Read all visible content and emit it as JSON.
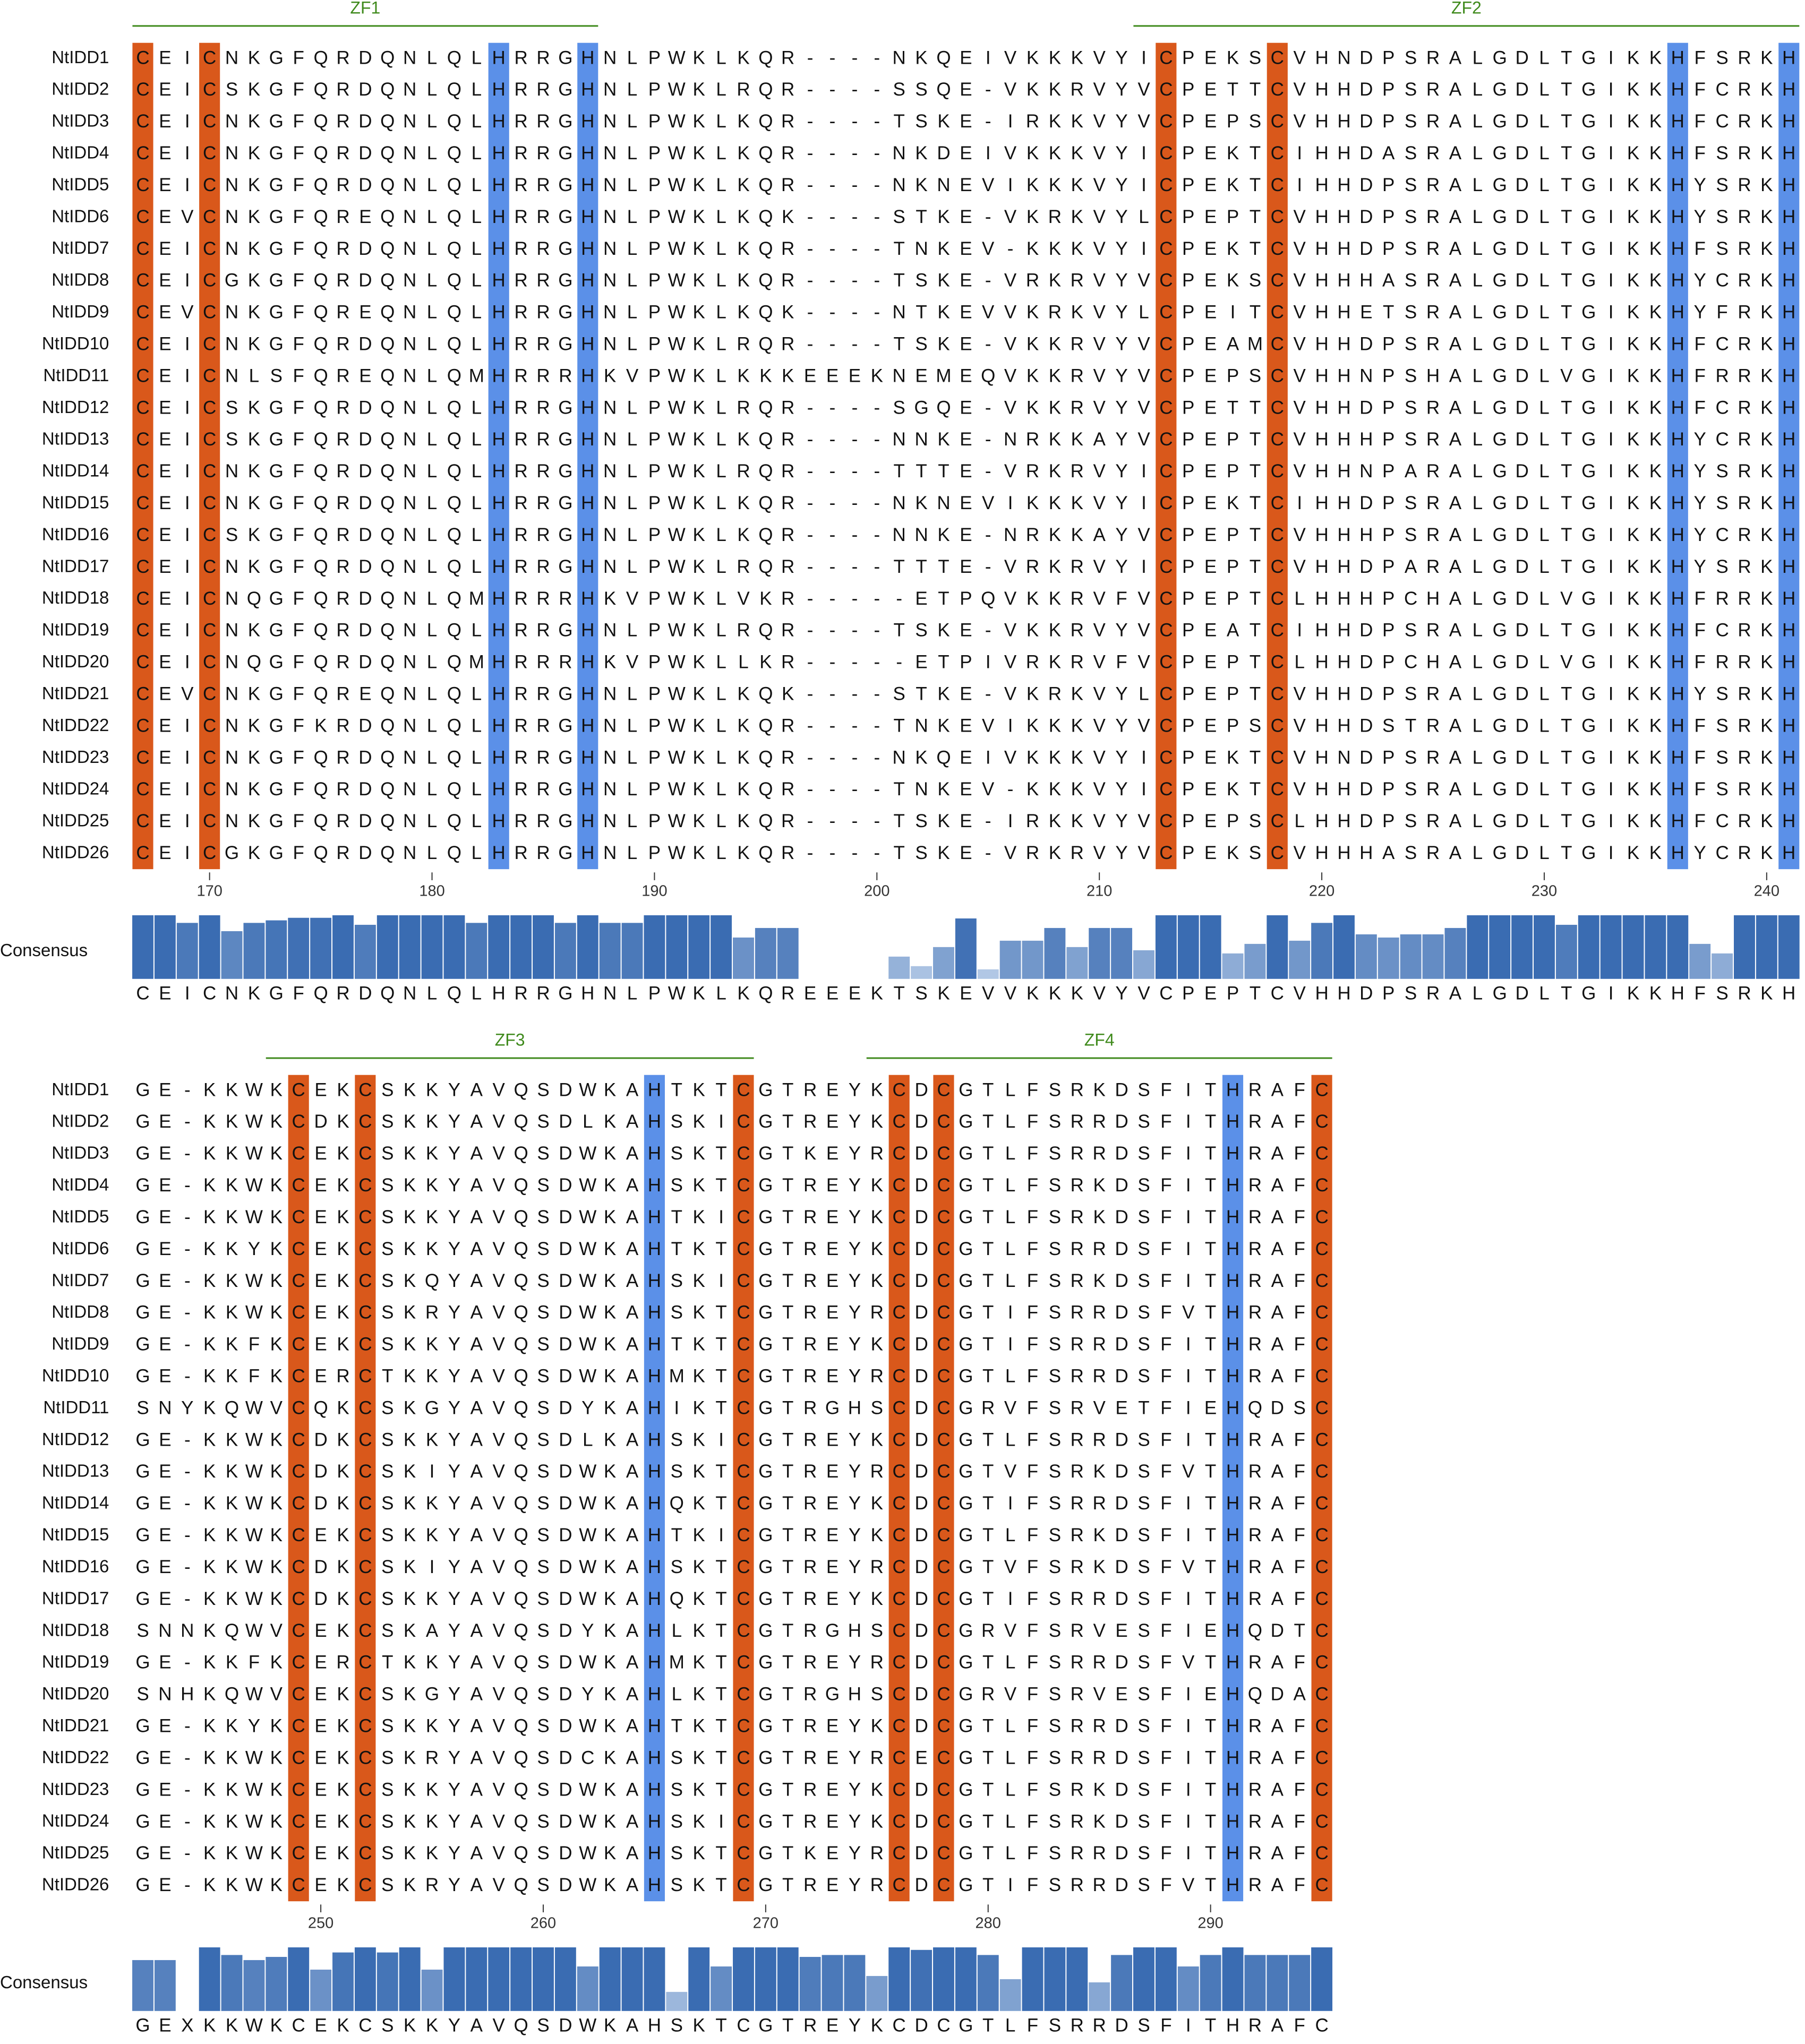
{
  "blocks": [
    {
      "start": 167,
      "zf": [
        {
          "label": "ZF1",
          "from": 167,
          "to": 187
        },
        {
          "label": "ZF2",
          "from": 212,
          "to": 241
        }
      ],
      "cys_positions": [
        167,
        170,
        213,
        218
      ],
      "his_positions": [
        183,
        187,
        236,
        241
      ],
      "names": [
        "NtIDD1",
        "NtIDD2",
        "NtIDD3",
        "NtIDD4",
        "NtIDD5",
        "NtIDD6",
        "NtIDD7",
        "NtIDD8",
        "NtIDD9",
        "NtIDD10",
        "NtIDD11",
        "NtIDD12",
        "NtIDD13",
        "NtIDD14",
        "NtIDD15",
        "NtIDD16",
        "NtIDD17",
        "NtIDD18",
        "NtIDD19",
        "NtIDD20",
        "NtIDD21",
        "NtIDD22",
        "NtIDD23",
        "NtIDD24",
        "NtIDD25",
        "NtIDD26"
      ],
      "sequences": [
        "CEICNKGFQRDQNLQLHRRGHNLPWKLKQR----NKQEIVKKKVYICPEKSCVHNDPSRALGDLTGIKKHFSRKH",
        "CEICSKGFQRDQNLQLHRRGHNLPWKLRQR----SSQE-VKKRVYVCPETTCVHHDPSRALGDLTGIKKHFCRKH",
        "CEICNKGFQRDQNLQLHRRGHNLPWKLKQR----TSKE-IRKKVYVCPEPSCVHHDPSRALGDLTGIKKHFCRKH",
        "CEICNKGFQRDQNLQLHRRGHNLPWKLKQR----NKDEIVKKKVYICPEKTCIHHDASRALGDLTGIKKHFSRKH",
        "CEICNKGFQRDQNLQLHRRGHNLPWKLKQR----NKNEVIKKKVYICPEKTCIHHDPSRALGDLTGIKKHYSRKH",
        "CEVCNKGFQREQNLQLHRRGHNLPWKLKQK----STKE-VKRKVYLCPEPTCVHHDPSRALGDLTGIKKHYSRKH",
        "CEICNKGFQRDQNLQLHRRGHNLPWKLKQR----TNKEV-KKKVYICPEKTCVHHDPSRALGDLTGIKKHFSRKH",
        "CEICGKGFQRDQNLQLHRRGHNLPWKLKQR----TSKE-VRKRVYVCPEKSCVHHHASRALGDLTGIKKHYCRKH",
        "CEVCNKGFQREQNLQLHRRGHNLPWKLKQK----NTKEVVKRKVYLCPEITCVHHETSRALGDLTGIKKHYFRKH",
        "CEICNKGFQRDQNLQLHRRGHNLPWKLRQR----TSKE-VKKRVYVCPEAMCVHHDPSRALGDLTGIKKHFCRKH",
        "CEICNLSFQREQNLQMHRRRHKVPWKLKKKEEEKNEMEQVKKRVYVCPEPSCVHHNPSHALGDLVGIKKHFRRKH",
        "CEICSKGFQRDQNLQLHRRGHNLPWKLRQR----SGQE-VKKRVYVCPETTCVHHDPSRALGDLTGIKKHFCRKH",
        "CEICSKGFQRDQNLQLHRRGHNLPWKLKQR----NNKE-NRKKAYVCPEPTCVHHHPSRALGDLTGIKKHYCRKH",
        "CEICNKGFQRDQNLQLHRRGHNLPWKLRQR----TTTE-VRKRVYICPEPTCVHHNPARALGDLTGIKKHYSRKH",
        "CEICNKGFQRDQNLQLHRRGHNLPWKLKQR----NKNEVIKKKVYICPEKTCIHHDPSRALGDLTGIKKHYSRKH",
        "CEICSKGFQRDQNLQLHRRGHNLPWKLKQR----NNKE-NRKKAYVCPEPTCVHHHPSRALGDLTGIKKHYCRKH",
        "CEICNKGFQRDQNLQLHRRGHNLPWKLRQR----TTTE-VRKRVYICPEPTCVHHDPARALGDLTGIKKHYSRKH",
        "CEICNQGFQRDQNLQMHRRRHKVPWKLVKR-----ETPQVKKRVFVCPEPTCLHHHPCHALGDLVGIKKHFRRKH",
        "CEICNKGFQRDQNLQLHRRGHNLPWKLRQR----TSKE-VKKRVYVCPEATCIHHDPSRALGDLTGIKKHFCRKH",
        "CEICNQGFQRDQNLQMHRRRHKVPWKLLKR-----ETPIVRKRVFVCPEPTCLHHDPCHALGDLVGIKKHFRRKH",
        "CEVCNKGFQREQNLQLHRRGHNLPWKLKQK----STKE-VKRKVYLCPEPTCVHHDPSRALGDLTGIKKHYSRKH",
        "CEICNKGFKRDQNLQLHRRGHNLPWKLKQR----TNKEVIKKKVYVCPEPSCVHHDSTRALGDLTGIKKHFSRKH",
        "CEICNKGFQRDQNLQLHRRGHNLPWKLKQR----NKQEIVKKKVYICPEKTCVHNDPSRALGDLTGIKKHFSRKH",
        "CEICNKGFQRDQNLQLHRRGHNLPWKLKQR----TNKEV-KKKVYICPEKTCVHHDPSRALGDLTGIKKHFSRKH",
        "CEICNKGFQRDQNLQLHRRGHNLPWKLKQR----TSKE-IRKKVYVCPEPSCLHHDPSRALGDLTGIKKHFCRKH",
        "CEICGKGFQRDQNLQLHRRGHNLPWKLKQR----TSKE-VRKRVYVCPEKSCVHHHASRALGDLTGIKKHYCRKH"
      ],
      "ticks": [
        170,
        180,
        190,
        200,
        210,
        220,
        230,
        240
      ],
      "consensus": {
        "label": "Consensus",
        "sequence": "CEICNKGFQRDQNLQLHRRGHNLPWKLKQREEEKTSKEVVKKKVYVCPEPTCVHHDPSRALGDLTGIKKHFSRKH",
        "values": [
          100,
          100,
          88,
          100,
          75,
          88,
          92,
          96,
          96,
          100,
          85,
          100,
          100,
          100,
          100,
          88,
          100,
          100,
          100,
          88,
          100,
          88,
          88,
          100,
          100,
          100,
          100,
          65,
          80,
          80,
          0,
          0,
          0,
          0,
          35,
          20,
          50,
          95,
          15,
          60,
          60,
          80,
          50,
          80,
          80,
          45,
          100,
          100,
          100,
          40,
          55,
          100,
          60,
          88,
          100,
          70,
          65,
          70,
          70,
          80,
          100,
          100,
          100,
          100,
          85,
          100,
          100,
          100,
          100,
          100,
          55,
          40,
          100,
          100,
          100
        ]
      }
    },
    {
      "start": 242,
      "zf": [
        {
          "label": "ZF3",
          "from": 248,
          "to": 269
        },
        {
          "label": "ZF4",
          "from": 275,
          "to": 295
        }
      ],
      "cys_positions": [
        249,
        252,
        269,
        276,
        278,
        295
      ],
      "his_positions": [
        265,
        291
      ],
      "names": [
        "NtIDD1",
        "NtIDD2",
        "NtIDD3",
        "NtIDD4",
        "NtIDD5",
        "NtIDD6",
        "NtIDD7",
        "NtIDD8",
        "NtIDD9",
        "NtIDD10",
        "NtIDD11",
        "NtIDD12",
        "NtIDD13",
        "NtIDD14",
        "NtIDD15",
        "NtIDD16",
        "NtIDD17",
        "NtIDD18",
        "NtIDD19",
        "NtIDD20",
        "NtIDD21",
        "NtIDD22",
        "NtIDD23",
        "NtIDD24",
        "NtIDD25",
        "NtIDD26"
      ],
      "sequences": [
        "GE-KKWKCEKCSKKYAVQSDWKAHTKTCGTREYKCDCGTLFSRKDSFITHRAFC",
        "GE-KKWKCDKCSKKYAVQSDLKAHSKICGTREYKCDCGTLFSRRDSFITHRAFC",
        "GE-KKWKCEKCSKKYAVQSDWKAHSKTCGTKEYRCDCGTLFSRRDSFITHRAFC",
        "GE-KKWKCEKCSKKYAVQSDWKAHSKTCGTREYKCDCGTLFSRKDSFITHRAFC",
        "GE-KKWKCEKCSKKYAVQSDWKAHTKICGTREYKCDCGTLFSRKDSFITHRAFC",
        "GE-KKYKCEKCSKKYAVQSDWKAHTKTCGTREYKCDCGTLFSRRDSFITHRAFC",
        "GE-KKWKCEKCSKQYAVQSDWKAHSKICGTREYKCDCGTLFSRKDSFITHRAFC",
        "GE-KKWKCEKCSKRYAVQSDWKAHSKTCGTREYRCDCGTIFSRRDSFVTHRAFC",
        "GE-KKFKCEKCSKKYAVQSDWKAHTKTCGTREYKCDCGTIFSRRDSFITHRAFC",
        "GE-KKFKCERCTKKYAVQSDWKAHMKTCGTREYRCDCGTLFSRRDSFITHRAFC",
        "SNYKQWVCQKCSKGYAVQSDYKAHIKTCGTRGHSCDCGRVFSRVETFIEHQDSC",
        "GE-KKWKCDKCSKKYAVQSDLKAHSKICGTREYKCDCGTLFSRRDSFITHRAFC",
        "GE-KKWKCDKCSKIYAVQSDWKAHSKTCGTREYRCDCGTVFSRKDSFVTHRAFC",
        "GE-KKWKCDKCSKKYAVQSDWKAHQKTCGTREYKCDCGTIFSRRDSFITHRAFC",
        "GE-KKWKCEKCSKKYAVQSDWKAHTKICGTREYKCDCGTLFSRKDSFITHRAFC",
        "GE-KKWKCDKCSKIYAVQSDWKAHSKTCGTREYRCDCGTVFSRKDSFVTHRAFC",
        "GE-KKWKCDKCSKKYAVQSDWKAHQKTCGTREYKCDCGTIFSRRDSFITHRAFC",
        "SNNKQWVCEKCSKAYAVQSDYKAHLKTCGTRGHSCDCGRVFSRVESFIEHQDTC",
        "GE-KKFKCERCTKKYAVQSDWKAHMKTCGTREYRCDCGTLFSRRDSFVTHRAFC",
        "SNHKQWVCEKCSKGYAVQSDYKAHLKTCGTRGHSCDCGRVFSRVESFIEHQDAC",
        "GE-KKYKCEKCSKKYAVQSDWKAHTKTCGTREYKCDCGTLFSRRDSFITHRAFC",
        "GE-KKWKCEKCSKRYAVQSDCKAHSKTCGTREYRCECGTLFSRRDSFITHRAFC",
        "GE-KKWKCEKCSKKYAVQSDWKAHSKTCGTREYKCDCGTLFSRKDSFITHRAFC",
        "GE-KKWKCEKCSKKYAVQSDWKAHSKICGTREYKCDCGTLFSRKDSFITHRAFC",
        "GE-KKWKCEKCSKKYAVQSDWKAHSKTCGTKEYRCDCGTLFSRRDSFITHRAFC",
        "GE-KKWKCEKCSKRYAVQSDWKAHSKTCGTREYRCDCGTIFSRRDSFVTHRAFC"
      ],
      "ticks": [
        250,
        260,
        270,
        280,
        290
      ],
      "consensus": {
        "label": "Consensus",
        "sequence": "GEXKKWKCEKCSKKYAVQSDWKAHSKTCGTREYKCDCGTLFSRRDSFITHRAFC",
        "values": [
          80,
          80,
          0,
          100,
          88,
          80,
          85,
          100,
          65,
          92,
          100,
          92,
          100,
          65,
          100,
          100,
          100,
          100,
          100,
          100,
          70,
          100,
          100,
          100,
          30,
          100,
          70,
          100,
          100,
          100,
          85,
          88,
          88,
          55,
          100,
          96,
          100,
          100,
          88,
          50,
          100,
          100,
          100,
          45,
          88,
          100,
          100,
          70,
          88,
          100,
          88,
          88,
          88,
          100
        ]
      }
    }
  ]
}
